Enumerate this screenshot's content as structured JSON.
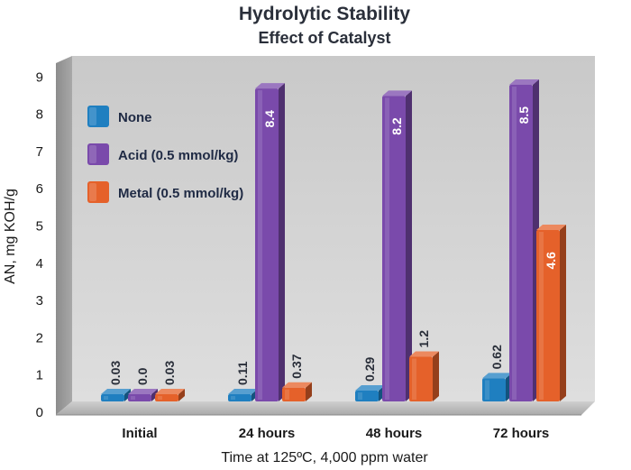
{
  "chart_data": {
    "type": "bar",
    "title": "Hydrolytic Stability",
    "subtitle": "Effect of Catalyst",
    "xlabel": "Time at 125ºC, 4,000 ppm water",
    "ylabel": "AN, mg KOH/g",
    "ylim": [
      0,
      9
    ],
    "yticks": [
      "0",
      "1",
      "2",
      "3",
      "4",
      "5",
      "6",
      "7",
      "8",
      "9"
    ],
    "categories": [
      "Initial",
      "24 hours",
      "48 hours",
      "72 hours"
    ],
    "series": [
      {
        "name": "None",
        "color": "#1f7fc0",
        "values": [
          0.03,
          0.11,
          0.29,
          0.62
        ],
        "labels": [
          "0.03",
          "0.11",
          "0.29",
          "0.62"
        ]
      },
      {
        "name": "Acid (0.5 mmol/kg)",
        "color": "#7a4aab",
        "values": [
          0.0,
          8.4,
          8.2,
          8.5
        ],
        "labels": [
          "0.0",
          "8.4",
          "8.2",
          "8.5"
        ]
      },
      {
        "name": "Metal (0.5 mmol/kg)",
        "color": "#e5612a",
        "values": [
          0.03,
          0.37,
          1.2,
          4.6
        ],
        "labels": [
          "0.03",
          "0.37",
          "1.2",
          "4.6"
        ]
      }
    ],
    "legend_position": "top-left",
    "grid": false
  }
}
